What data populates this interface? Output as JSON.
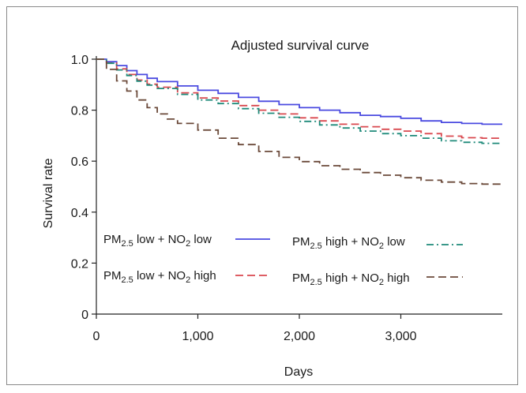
{
  "chart_data": {
    "type": "line",
    "title": "Adjusted survival curve",
    "xlabel": "Days",
    "ylabel": "Survival rate",
    "xlim": [
      0,
      4000
    ],
    "ylim": [
      0,
      1.0
    ],
    "x_ticks": [
      0,
      1000,
      2000,
      3000
    ],
    "x_tick_labels": [
      "0",
      "1,000",
      "2,000",
      "3,000"
    ],
    "y_ticks": [
      0,
      0.2,
      0.4,
      0.6,
      0.8,
      1.0
    ],
    "y_tick_labels": [
      "0",
      "0.2",
      "0.4",
      "0.6",
      "0.8",
      "1.0"
    ],
    "grid": false,
    "legend_position": "center",
    "series": [
      {
        "name_parts": [
          "PM",
          "2.5",
          " low + NO",
          "2",
          " low"
        ],
        "color": "#4a4ae0",
        "dash": "solid",
        "x": [
          0,
          100,
          200,
          300,
          400,
          500,
          600,
          800,
          1000,
          1200,
          1400,
          1600,
          1800,
          2000,
          2200,
          2400,
          2600,
          2800,
          3000,
          3200,
          3400,
          3600,
          3800,
          4000
        ],
        "y": [
          1.0,
          0.99,
          0.975,
          0.955,
          0.94,
          0.925,
          0.912,
          0.895,
          0.878,
          0.866,
          0.85,
          0.835,
          0.822,
          0.81,
          0.8,
          0.79,
          0.78,
          0.775,
          0.768,
          0.758,
          0.752,
          0.748,
          0.745,
          0.745
        ]
      },
      {
        "name_parts": [
          "PM",
          "2.5",
          " low + NO",
          "2",
          " high"
        ],
        "color": "#d9484f",
        "dash": "long-dash",
        "x": [
          0,
          100,
          200,
          300,
          400,
          500,
          600,
          800,
          1000,
          1200,
          1400,
          1600,
          1800,
          2000,
          2200,
          2400,
          2600,
          2800,
          3000,
          3200,
          3400,
          3600,
          3800,
          4000
        ],
        "y": [
          1.0,
          0.985,
          0.962,
          0.94,
          0.918,
          0.902,
          0.89,
          0.868,
          0.848,
          0.836,
          0.818,
          0.8,
          0.785,
          0.77,
          0.758,
          0.745,
          0.735,
          0.725,
          0.718,
          0.708,
          0.698,
          0.692,
          0.69,
          0.69
        ]
      },
      {
        "name_parts": [
          "PM",
          "2.5",
          " high + NO",
          "2",
          " low"
        ],
        "color": "#1f8a7a",
        "dash": "dash-dot",
        "x": [
          0,
          100,
          200,
          300,
          400,
          500,
          600,
          800,
          1000,
          1200,
          1400,
          1600,
          1800,
          2000,
          2200,
          2400,
          2600,
          2800,
          3000,
          3200,
          3400,
          3600,
          3800,
          4000
        ],
        "y": [
          1.0,
          0.984,
          0.958,
          0.936,
          0.914,
          0.898,
          0.885,
          0.862,
          0.84,
          0.826,
          0.806,
          0.788,
          0.772,
          0.756,
          0.742,
          0.73,
          0.718,
          0.708,
          0.7,
          0.69,
          0.68,
          0.674,
          0.67,
          0.67
        ]
      },
      {
        "name_parts": [
          "PM",
          "2.5",
          " high + NO",
          "2",
          " high"
        ],
        "color": "#6b4a3a",
        "dash": "long-dash",
        "x": [
          0,
          100,
          200,
          300,
          400,
          500,
          600,
          700,
          800,
          1000,
          1200,
          1400,
          1600,
          1800,
          2000,
          2200,
          2400,
          2600,
          2800,
          3000,
          3200,
          3400,
          3600,
          3800,
          4000
        ],
        "y": [
          1.0,
          0.96,
          0.915,
          0.875,
          0.84,
          0.81,
          0.785,
          0.765,
          0.748,
          0.722,
          0.69,
          0.665,
          0.638,
          0.615,
          0.598,
          0.582,
          0.568,
          0.555,
          0.545,
          0.535,
          0.525,
          0.518,
          0.512,
          0.51,
          0.51
        ]
      }
    ]
  }
}
